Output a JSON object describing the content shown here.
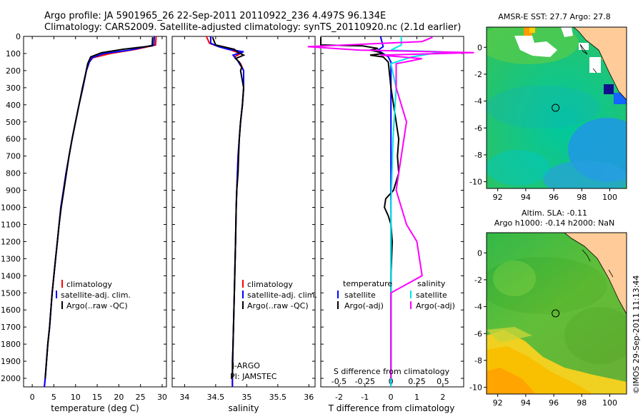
{
  "title": {
    "line1": "Argo profile: JA 5901965_26 22-Sep-2011 20110922_236 4.497S 96.134E",
    "line2": "Climatology: CARS2009. Satellite-adjusted climatology: synTS_20110920.nc (2.1d earlier)"
  },
  "depth_ticks": [
    0,
    100,
    200,
    300,
    400,
    500,
    600,
    700,
    800,
    900,
    1000,
    1100,
    1200,
    1300,
    1400,
    1500,
    1600,
    1700,
    1800,
    1900,
    2000
  ],
  "colors": {
    "climatology": "#ff0000",
    "satellite": "#0000ff",
    "argo": "#000000",
    "sat_salinity": "#00e5e5",
    "argo_salinity": "#ff00ff"
  },
  "chart_data": [
    {
      "id": "temperature",
      "type": "line",
      "xlabel": "temperature (deg C)",
      "ylabel": "",
      "xlim": [
        -2,
        31
      ],
      "ylim": [
        2050,
        0
      ],
      "xticks": [
        0,
        5,
        10,
        15,
        20,
        25,
        30
      ],
      "legend": [
        "climatology",
        "satellite-adj. clim.",
        "Argo(..raw -QC)"
      ],
      "series": [
        {
          "name": "climatology",
          "color": "#ff0000",
          "points": [
            [
              28.6,
              0
            ],
            [
              28.5,
              50
            ],
            [
              24,
              75
            ],
            [
              18,
              100
            ],
            [
              14,
              125
            ],
            [
              13.2,
              150
            ],
            [
              12.5,
              200
            ],
            [
              11.7,
              300
            ],
            [
              10.8,
              400
            ],
            [
              10,
              500
            ],
            [
              9.2,
              600
            ],
            [
              8.5,
              700
            ],
            [
              7.8,
              800
            ],
            [
              7.2,
              900
            ],
            [
              6.6,
              1000
            ],
            [
              6.2,
              1100
            ],
            [
              5.8,
              1200
            ],
            [
              5.4,
              1300
            ],
            [
              5,
              1400
            ],
            [
              4.6,
              1500
            ],
            [
              4.3,
              1600
            ],
            [
              4,
              1700
            ],
            [
              3.6,
              1800
            ],
            [
              3.3,
              1900
            ],
            [
              3,
              2000
            ],
            [
              2.8,
              2050
            ]
          ]
        },
        {
          "name": "satellite-adj. clim.",
          "color": "#0000ff",
          "points": [
            [
              28.2,
              0
            ],
            [
              28.1,
              50
            ],
            [
              22.5,
              80
            ],
            [
              16.5,
              100
            ],
            [
              13.8,
              125
            ],
            [
              13.2,
              150
            ],
            [
              12.5,
              200
            ],
            [
              11.7,
              300
            ],
            [
              10.8,
              400
            ],
            [
              10,
              500
            ],
            [
              9.2,
              600
            ],
            [
              8.5,
              700
            ],
            [
              7.8,
              800
            ],
            [
              7.2,
              900
            ],
            [
              6.6,
              1000
            ],
            [
              6.2,
              1100
            ],
            [
              5.8,
              1200
            ],
            [
              5.4,
              1300
            ],
            [
              5,
              1400
            ],
            [
              4.6,
              1500
            ],
            [
              4.3,
              1600
            ],
            [
              4,
              1700
            ],
            [
              3.6,
              1800
            ],
            [
              3.3,
              1900
            ],
            [
              3,
              2000
            ],
            [
              2.8,
              2050
            ]
          ]
        },
        {
          "name": "Argo(..raw -QC)",
          "color": "#000000",
          "points": [
            [
              27.8,
              5
            ],
            [
              27.7,
              55
            ],
            [
              21,
              75
            ],
            [
              16,
              95
            ],
            [
              13.5,
              120
            ],
            [
              12.8,
              160
            ],
            [
              12.3,
              220
            ],
            [
              11.6,
              300
            ],
            [
              10.8,
              400
            ],
            [
              10,
              500
            ],
            [
              9.2,
              600
            ],
            [
              8.5,
              700
            ],
            [
              7.9,
              800
            ],
            [
              7.3,
              900
            ],
            [
              6.7,
              1000
            ],
            [
              6.2,
              1100
            ],
            [
              5.8,
              1200
            ],
            [
              5.4,
              1300
            ],
            [
              5,
              1400
            ],
            [
              4.6,
              1500
            ],
            [
              4.3,
              1600
            ],
            [
              4,
              1700
            ],
            [
              3.6,
              1800
            ],
            [
              3.3,
              1900
            ],
            [
              3,
              2000
            ]
          ]
        }
      ]
    },
    {
      "id": "salinity",
      "type": "line",
      "xlabel": "salinity",
      "ylabel": "",
      "xlim": [
        33.8,
        36.1
      ],
      "ylim": [
        2050,
        0
      ],
      "xticks": [
        34,
        34.5,
        35,
        35.5,
        36
      ],
      "legend": [
        "climatology",
        "satellite-adj. clim.",
        "Argo(..raw -QC)"
      ],
      "annotation": [
        "J-ARGO",
        "PI: JAMSTEC"
      ],
      "series": [
        {
          "name": "climatology",
          "color": "#ff0000",
          "points": [
            [
              34.35,
              0
            ],
            [
              34.4,
              40
            ],
            [
              34.55,
              60
            ],
            [
              34.75,
              80
            ],
            [
              34.9,
              100
            ],
            [
              34.8,
              120
            ],
            [
              34.9,
              160
            ],
            [
              34.95,
              200
            ],
            [
              34.95,
              300
            ],
            [
              34.93,
              400
            ],
            [
              34.9,
              500
            ],
            [
              34.88,
              600
            ],
            [
              34.86,
              700
            ],
            [
              34.85,
              800
            ],
            [
              34.84,
              900
            ],
            [
              34.83,
              1000
            ],
            [
              34.82,
              1200
            ],
            [
              34.8,
              1500
            ],
            [
              34.78,
              1800
            ],
            [
              34.77,
              2000
            ],
            [
              34.77,
              2050
            ]
          ]
        },
        {
          "name": "satellite-adj. clim.",
          "color": "#0000ff",
          "points": [
            [
              34.42,
              0
            ],
            [
              34.42,
              40
            ],
            [
              34.55,
              60
            ],
            [
              34.7,
              75
            ],
            [
              34.95,
              90
            ],
            [
              34.78,
              110
            ],
            [
              34.85,
              140
            ],
            [
              34.95,
              200
            ],
            [
              34.95,
              300
            ],
            [
              34.93,
              400
            ],
            [
              34.9,
              500
            ],
            [
              34.88,
              600
            ],
            [
              34.86,
              700
            ],
            [
              34.85,
              800
            ],
            [
              34.84,
              900
            ],
            [
              34.83,
              1000
            ],
            [
              34.82,
              1200
            ],
            [
              34.8,
              1500
            ],
            [
              34.78,
              1800
            ],
            [
              34.77,
              2000
            ],
            [
              34.77,
              2050
            ]
          ]
        },
        {
          "name": "Argo(..raw -QC)",
          "color": "#000000",
          "points": [
            [
              34.45,
              5
            ],
            [
              34.5,
              50
            ],
            [
              34.8,
              75
            ],
            [
              34.85,
              90
            ],
            [
              34.95,
              110
            ],
            [
              34.82,
              130
            ],
            [
              34.88,
              150
            ],
            [
              34.92,
              180
            ],
            [
              34.9,
              200
            ],
            [
              34.95,
              300
            ],
            [
              34.93,
              400
            ],
            [
              34.9,
              500
            ],
            [
              34.88,
              600
            ],
            [
              34.87,
              700
            ],
            [
              34.86,
              800
            ],
            [
              34.84,
              900
            ],
            [
              34.83,
              1000
            ],
            [
              34.82,
              1200
            ],
            [
              34.8,
              1500
            ],
            [
              34.78,
              1800
            ],
            [
              34.77,
              1900
            ],
            [
              34.77,
              2000
            ]
          ]
        }
      ]
    },
    {
      "id": "differences",
      "type": "line",
      "xlabel": "T difference from climatology",
      "xlabel_top": "S difference from climatology",
      "ylabel": "",
      "xlim": [
        -2.7,
        2.8
      ],
      "ylim": [
        2050,
        0
      ],
      "xticks": [
        -2,
        -1,
        0,
        1,
        2
      ],
      "xticks_s": [
        -0.5,
        -0.25,
        0,
        0.25,
        0.5
      ],
      "legend_temperature": {
        "title": "temperature",
        "items": [
          "satellite",
          "Argo(-adj)"
        ]
      },
      "legend_salinity": {
        "title": "salinity",
        "items": [
          "satellite",
          "Argo(-adj)"
        ]
      },
      "series": [
        {
          "name": "temperature satellite",
          "color": "#0000ff",
          "points": [
            [
              -0.4,
              0
            ],
            [
              -0.3,
              60
            ],
            [
              -0.5,
              80
            ],
            [
              -0.3,
              100
            ],
            [
              -0.1,
              120
            ],
            [
              0,
              150
            ],
            [
              0,
              2050
            ]
          ]
        },
        {
          "name": "temperature Argo(-adj)",
          "color": "#000000",
          "points": [
            [
              -2.7,
              5
            ],
            [
              -2.7,
              50
            ],
            [
              -1.1,
              55
            ],
            [
              -0.5,
              70
            ],
            [
              -0.8,
              80
            ],
            [
              -0.5,
              90
            ],
            [
              -0.3,
              100
            ],
            [
              -0.8,
              110
            ],
            [
              -0.3,
              120
            ],
            [
              -0.1,
              150
            ],
            [
              0,
              300
            ],
            [
              0.2,
              500
            ],
            [
              0.3,
              600
            ],
            [
              0.25,
              700
            ],
            [
              0.3,
              800
            ],
            [
              0.1,
              900
            ],
            [
              -0.2,
              950
            ],
            [
              -0.25,
              1000
            ],
            [
              -0.1,
              1050
            ],
            [
              0,
              1100
            ],
            [
              0.05,
              1200
            ],
            [
              0,
              1400
            ],
            [
              0,
              2000
            ]
          ]
        },
        {
          "name": "salinity satellite",
          "color": "#00e5e5",
          "points": [
            [
              0.1,
              0
            ],
            [
              0.1,
              50
            ],
            [
              0,
              80
            ],
            [
              0.5,
              90
            ],
            [
              0.2,
              120
            ],
            [
              0,
              160
            ],
            [
              0.05,
              300
            ],
            [
              0.02,
              600
            ],
            [
              0,
              1000
            ],
            [
              0,
              2050
            ]
          ]
        },
        {
          "name": "salinity Argo(-adj)",
          "color": "#ff00ff",
          "points": [
            [
              0.4,
              5
            ],
            [
              0.3,
              30
            ],
            [
              -0.8,
              60
            ],
            [
              -0.3,
              80
            ],
            [
              0.8,
              95
            ],
            [
              -0.1,
              110
            ],
            [
              0.3,
              130
            ],
            [
              0.05,
              160
            ],
            [
              0.05,
              300
            ],
            [
              0.15,
              500
            ],
            [
              0.1,
              700
            ],
            [
              0.05,
              900
            ],
            [
              0.15,
              1100
            ],
            [
              0.25,
              1200
            ],
            [
              0.3,
              1400
            ],
            [
              0,
              1500
            ],
            [
              0,
              2000
            ]
          ]
        }
      ]
    },
    {
      "id": "sst_map",
      "type": "heatmap",
      "title": "AMSR-E SST: 27.7  Argo: 27.8",
      "xlim": [
        91.2,
        101.2
      ],
      "ylim": [
        -10.5,
        1.5
      ],
      "xticks": [
        92,
        94,
        96,
        98,
        100
      ],
      "yticks": [
        0,
        -2,
        -4,
        -6,
        -8,
        -10
      ],
      "marker": {
        "lon": 96.13,
        "lat": -4.5
      }
    },
    {
      "id": "sla_map",
      "type": "heatmap",
      "title_line1": "Altim. SLA: -0.11",
      "title_line2": "Argo h1000: -0.14  h2000: NaN",
      "xlim": [
        91.2,
        101.2
      ],
      "ylim": [
        -10.5,
        1.5
      ],
      "xticks": [
        92,
        94,
        96,
        98,
        100
      ],
      "yticks": [
        0,
        -2,
        -4,
        -6,
        -8,
        -10
      ],
      "marker": {
        "lon": 96.13,
        "lat": -4.5
      }
    }
  ],
  "footer": "©IMOS 29-Sep-2011 11:13:44"
}
